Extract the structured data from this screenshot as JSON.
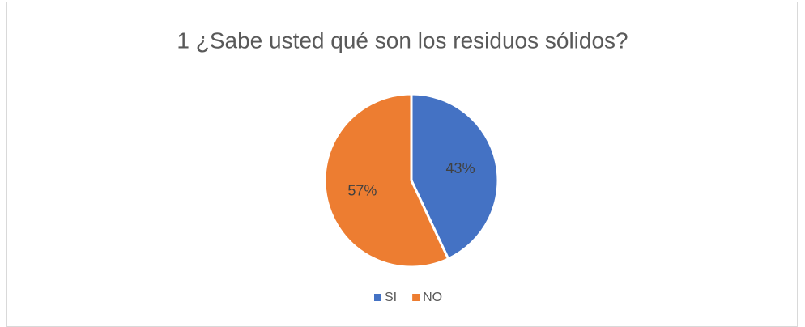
{
  "chart_data": {
    "type": "pie",
    "title": "1 ¿Sabe usted qué son los residuos sólidos?",
    "categories": [
      "SI",
      "NO"
    ],
    "values": [
      43,
      57
    ],
    "value_labels": [
      "43%",
      "57%"
    ],
    "colors": [
      "#4472c4",
      "#ed7d31"
    ],
    "legend": "bottom"
  }
}
